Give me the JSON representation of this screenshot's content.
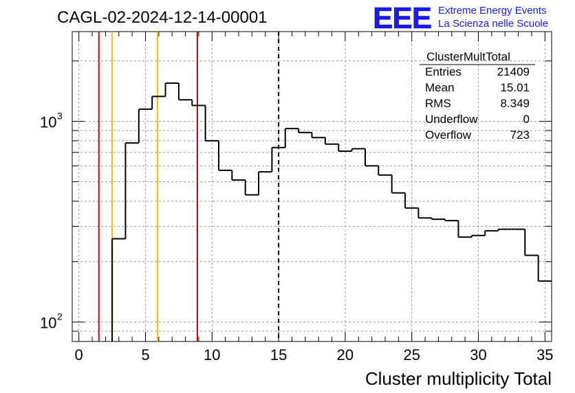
{
  "header": {
    "title": "CAGL-02-2024-12-14-00001",
    "logo_text": "EEE",
    "logo_line1": "Extreme Energy Events",
    "logo_line2": "La Scienza nelle Scuole",
    "logo_color": "#1a1aff"
  },
  "stats_box": {
    "name": "ClusterMultTotal",
    "rows": [
      {
        "label": "Entries",
        "value": "21409"
      },
      {
        "label": "Mean",
        "value": "15.01"
      },
      {
        "label": "RMS",
        "value": "8.349"
      },
      {
        "label": "Underflow",
        "value": "0"
      },
      {
        "label": "Overflow",
        "value": "723"
      }
    ]
  },
  "chart_data": {
    "type": "bar",
    "style": "step-histogram",
    "xlabel": "Cluster multiplicity Total",
    "ylabel": "",
    "x_range": [
      -0.5,
      35.5
    ],
    "y_range": [
      80,
      2800
    ],
    "y_scale": "log",
    "grid": true,
    "x_ticks": [
      0,
      5,
      10,
      15,
      20,
      25,
      30,
      35
    ],
    "y_ticks": [
      {
        "value": 100,
        "base": "10",
        "exp": "2"
      },
      {
        "value": 1000,
        "base": "10",
        "exp": "3"
      }
    ],
    "bin_width": 1,
    "bins_x": [
      0,
      1,
      2,
      3,
      4,
      5,
      6,
      7,
      8,
      9,
      10,
      11,
      12,
      13,
      14,
      15,
      16,
      17,
      18,
      19,
      20,
      21,
      22,
      23,
      24,
      25,
      26,
      27,
      28,
      29,
      30,
      31,
      32,
      33,
      34,
      35
    ],
    "values": [
      0,
      0,
      0,
      260,
      780,
      1150,
      1330,
      1550,
      1280,
      1200,
      800,
      570,
      510,
      430,
      560,
      740,
      920,
      880,
      830,
      770,
      710,
      730,
      600,
      540,
      440,
      370,
      330,
      325,
      320,
      265,
      270,
      285,
      290,
      290,
      215,
      160
    ],
    "series": [
      {
        "name": "ClusterMultTotal",
        "color": "#000000"
      }
    ],
    "vertical_lines": [
      {
        "x": 1.5,
        "color": "#dd0000",
        "style": "solid"
      },
      {
        "x": 2.5,
        "color": "#f0c000",
        "style": "solid"
      },
      {
        "x": 5.9,
        "color": "#f0c000",
        "style": "solid"
      },
      {
        "x": 8.9,
        "color": "#dd0000",
        "style": "solid"
      },
      {
        "x": 15.0,
        "color": "#000000",
        "style": "dashed"
      }
    ]
  }
}
